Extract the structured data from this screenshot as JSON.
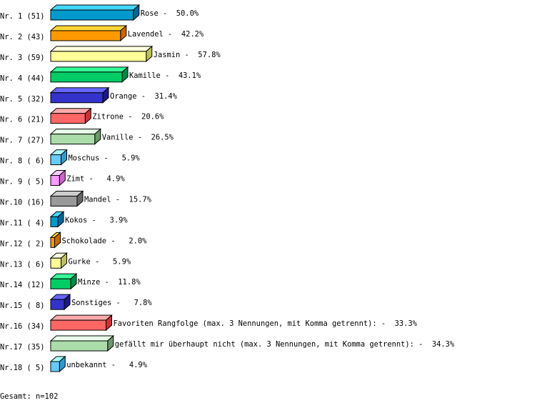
{
  "chart_data": {
    "type": "bar",
    "orientation": "horizontal",
    "style": "3d",
    "categories": [
      "Nr. 1",
      "Nr. 2",
      "Nr. 3",
      "Nr. 4",
      "Nr. 5",
      "Nr. 6",
      "Nr. 7",
      "Nr. 8",
      "Nr. 9",
      "Nr.10",
      "Nr.11",
      "Nr.12",
      "Nr.13",
      "Nr.14",
      "Nr.15",
      "Nr.16",
      "Nr.17",
      "Nr.18"
    ],
    "names": [
      "Rose",
      "Lavendel",
      "Jasmin",
      "Kamille",
      "Orange",
      "Zitrone",
      "Vanille",
      "Moschus",
      "Zimt",
      "Mandel",
      "Kokos",
      "Schokolade",
      "Gurke",
      "Minze",
      "Sonstiges",
      "Favoriten Rangfolge (max. 3 Nennungen, mit Komma getrennt):",
      "gefällt mir überhaupt nicht (max. 3 Nennungen, mit Komma getrennt):",
      "unbekannt"
    ],
    "values": [
      51,
      43,
      59,
      44,
      32,
      21,
      27,
      6,
      5,
      16,
      4,
      2,
      6,
      12,
      8,
      34,
      35,
      5
    ],
    "percents": [
      "50.0%",
      "42.2%",
      "57.8%",
      "43.1%",
      "31.4%",
      "20.6%",
      "26.5%",
      "5.9%",
      "4.9%",
      "15.7%",
      "3.9%",
      "2.0%",
      "5.9%",
      "11.8%",
      "7.8%",
      "33.3%",
      "34.3%",
      "4.9%"
    ],
    "colors": [
      {
        "front": "#0099cc",
        "top": "#44d7ff",
        "side": "#006699"
      },
      {
        "front": "#ff9900",
        "top": "#ffd633",
        "side": "#cc6600"
      },
      {
        "front": "#ffff99",
        "top": "#ffffdd",
        "side": "#bfbf60"
      },
      {
        "front": "#00cc66",
        "top": "#33ff99",
        "side": "#008844"
      },
      {
        "front": "#3333cc",
        "top": "#6666ff",
        "side": "#1a1a80"
      },
      {
        "front": "#ff6666",
        "top": "#ffaaaa",
        "side": "#cc3333"
      },
      {
        "front": "#aaddaa",
        "top": "#eaffea",
        "side": "#6a996a"
      },
      {
        "front": "#66ccff",
        "top": "#aaffff",
        "side": "#3399cc"
      },
      {
        "front": "#ff99ff",
        "top": "#ffccff",
        "side": "#cc66cc"
      },
      {
        "front": "#999999",
        "top": "#cccccc",
        "side": "#666666"
      }
    ],
    "footer": "Gesamt: n=102"
  }
}
